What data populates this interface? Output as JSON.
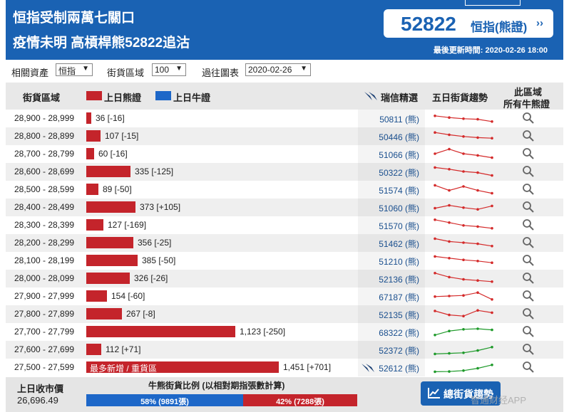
{
  "header": {
    "title_line1": "恒指受制兩萬七關口",
    "title_line2": "疫情未明 高槓桿熊52822追沽",
    "quote_number": "52822",
    "quote_label": "恒指(熊證)",
    "quote_arrow": "››",
    "updated": "最後更新時間: 2020-02-26 18:00"
  },
  "filters": {
    "asset_label": "相關資產",
    "asset_value": "恒指",
    "zone_label": "街貨區域",
    "zone_value": "100",
    "past_label": "過往圖表",
    "past_value": "2020-02-26"
  },
  "columns": {
    "range": "街貨區域",
    "bear_legend": "上日熊證",
    "bull_legend": "上日牛證",
    "pick": "瑞信精選",
    "trend": "五日街貨趨勢",
    "zone_all_1": "此區域",
    "zone_all_2": "所有牛熊證"
  },
  "rows": [
    {
      "range": "28,900 - 28,999",
      "value": 36,
      "label": "36 [-16]",
      "code": "50811 (熊)",
      "color": "red",
      "trend": [
        0.7,
        0.55,
        0.45,
        0.4,
        0.2
      ]
    },
    {
      "range": "28,800 - 28,899",
      "value": 107,
      "label": "107 [-15]",
      "code": "50446 (熊)",
      "color": "red",
      "trend": [
        0.8,
        0.6,
        0.45,
        0.35,
        0.3
      ]
    },
    {
      "range": "28,700 - 28,799",
      "value": 60,
      "label": "60 [-16]",
      "code": "51066 (熊)",
      "color": "red",
      "trend": [
        0.5,
        0.9,
        0.5,
        0.35,
        0.15
      ]
    },
    {
      "range": "28,600 - 28,699",
      "value": 335,
      "label": "335 [-125]",
      "code": "50322 (熊)",
      "color": "red",
      "trend": [
        0.85,
        0.7,
        0.5,
        0.4,
        0.15
      ]
    },
    {
      "range": "28,500 - 28,599",
      "value": 89,
      "label": "89 [-50]",
      "code": "51574 (熊)",
      "color": "red",
      "trend": [
        0.85,
        0.4,
        0.75,
        0.4,
        0.15
      ]
    },
    {
      "range": "28,400 - 28,499",
      "value": 373,
      "label": "373 [+105]",
      "code": "51060 (熊)",
      "color": "red",
      "trend": [
        0.4,
        0.65,
        0.45,
        0.3,
        0.6
      ]
    },
    {
      "range": "28,300 - 28,399",
      "value": 127,
      "label": "127 [-169]",
      "code": "51570 (熊)",
      "color": "red",
      "trend": [
        0.95,
        0.7,
        0.45,
        0.35,
        0.2
      ]
    },
    {
      "range": "28,200 - 28,299",
      "value": 356,
      "label": "356 [-25]",
      "code": "51462 (熊)",
      "color": "red",
      "trend": [
        0.85,
        0.6,
        0.5,
        0.4,
        0.2
      ]
    },
    {
      "range": "28,100 - 28,199",
      "value": 385,
      "label": "385 [-50]",
      "code": "51210 (熊)",
      "color": "red",
      "trend": [
        0.85,
        0.7,
        0.55,
        0.45,
        0.3
      ]
    },
    {
      "range": "28,000 - 28,099",
      "value": 326,
      "label": "326 [-26]",
      "code": "52136 (熊)",
      "color": "red",
      "trend": [
        0.95,
        0.6,
        0.4,
        0.3,
        0.2
      ]
    },
    {
      "range": "27,900 - 27,999",
      "value": 154,
      "label": "154 [-60]",
      "code": "67187 (熊)",
      "color": "red",
      "trend": [
        0.45,
        0.5,
        0.55,
        0.8,
        0.2
      ]
    },
    {
      "range": "27,800 - 27,899",
      "value": 267,
      "label": "267 [-8]",
      "code": "52135 (熊)",
      "color": "red",
      "trend": [
        0.75,
        0.4,
        0.3,
        0.8,
        0.6
      ]
    },
    {
      "range": "27,700 - 27,799",
      "value": 1123,
      "label": "1,123 [-250]",
      "code": "68322 (熊)",
      "color": "green",
      "trend": [
        0.2,
        0.55,
        0.7,
        0.75,
        0.65
      ]
    },
    {
      "range": "27,600 - 27,699",
      "value": 112,
      "label": "112 [+71]",
      "code": "52372 (熊)",
      "color": "green",
      "trend": [
        0.1,
        0.15,
        0.2,
        0.4,
        0.7
      ]
    },
    {
      "range": "27,500 - 27,599",
      "value": 1451,
      "label": "1,451 [+701]",
      "code": "52612 (熊)",
      "color": "green",
      "trend": [
        0.1,
        0.12,
        0.2,
        0.4,
        0.7
      ],
      "tag": "最多新增 / 重貨區",
      "pick": true
    }
  ],
  "footer": {
    "close_label": "上日收市價",
    "close_value": "26,696.49",
    "ratio_title": "牛熊街貨比例 (以相對期指張數計算)",
    "bull_pct": 58,
    "bull_text": "58% (9891張)",
    "bear_text": "42% (7288張)",
    "trend_button": "總街貨趨勢"
  },
  "watermark": "智通财经APP"
}
